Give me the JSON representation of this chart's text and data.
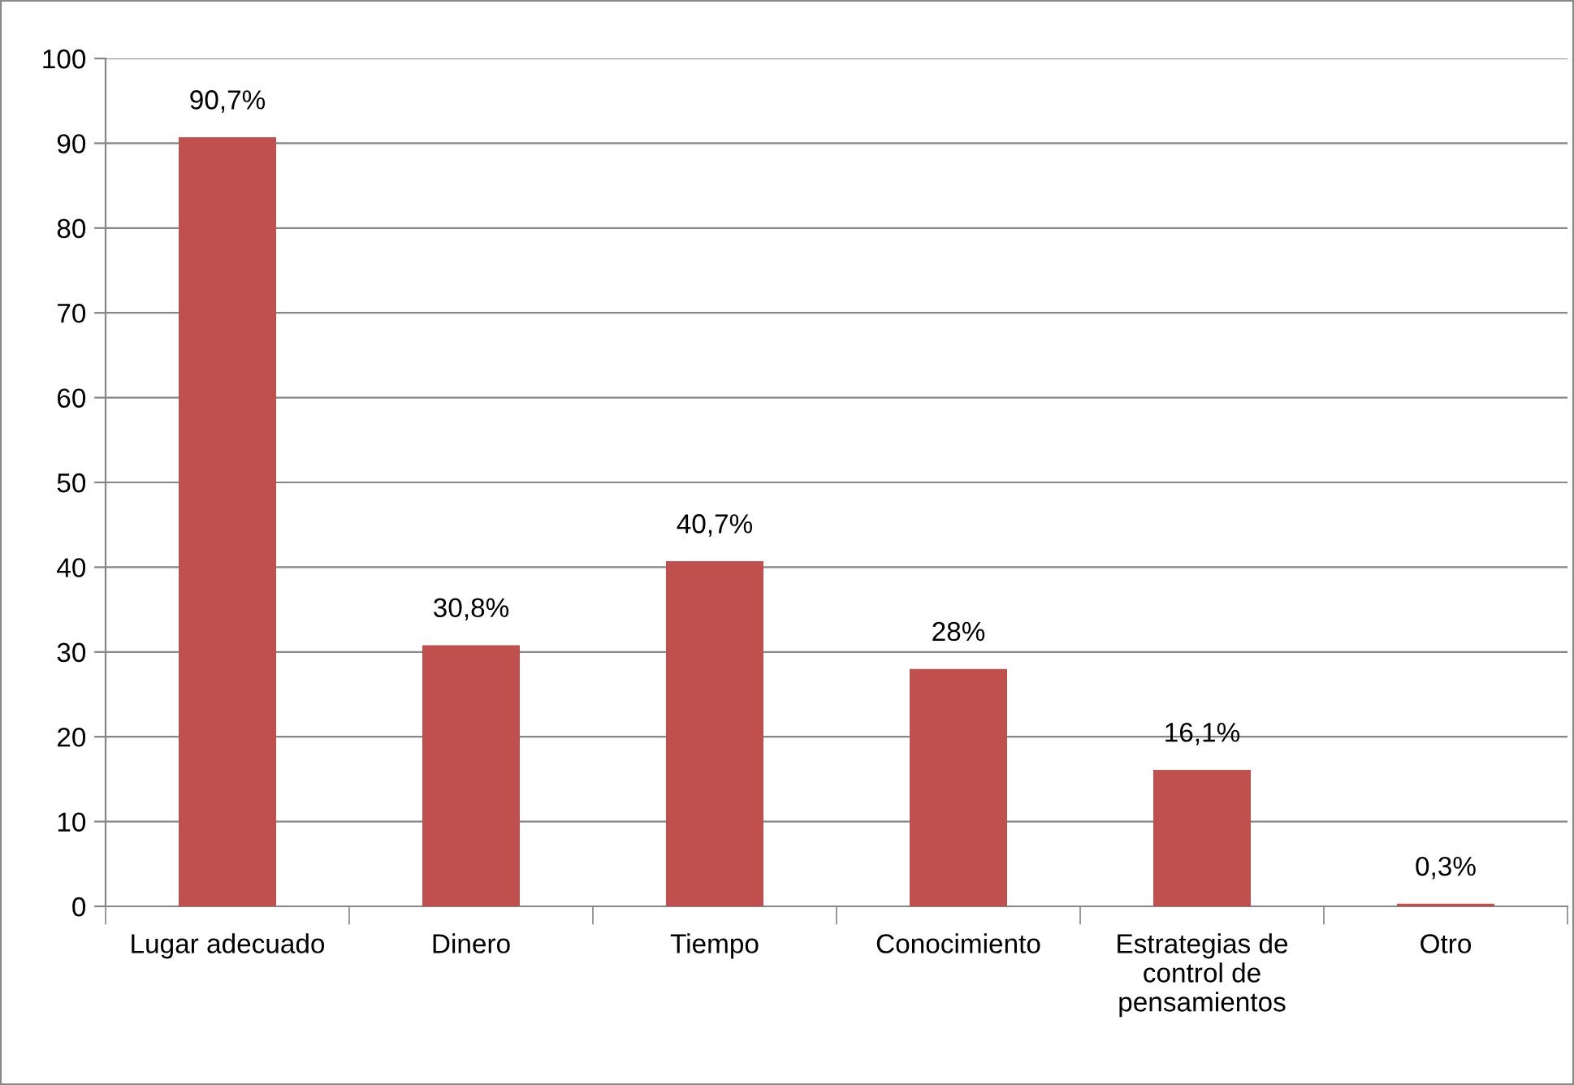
{
  "chart_data": {
    "type": "bar",
    "categories": [
      "Lugar adecuado",
      "Dinero",
      "Tiempo",
      "Conocimiento",
      "Estrategias de\ncontrol de\npensamientos",
      "Otro"
    ],
    "values": [
      90.7,
      30.8,
      40.7,
      28,
      16.1,
      0.3
    ],
    "value_labels": [
      "90,7%",
      "30,8%",
      "40,7%",
      "28%",
      "16,1%",
      "0,3%"
    ],
    "color": "#c0504d",
    "ylim": [
      0,
      100
    ],
    "yticks": [
      0,
      10,
      20,
      30,
      40,
      50,
      60,
      70,
      80,
      90,
      100
    ],
    "grid": "y"
  }
}
